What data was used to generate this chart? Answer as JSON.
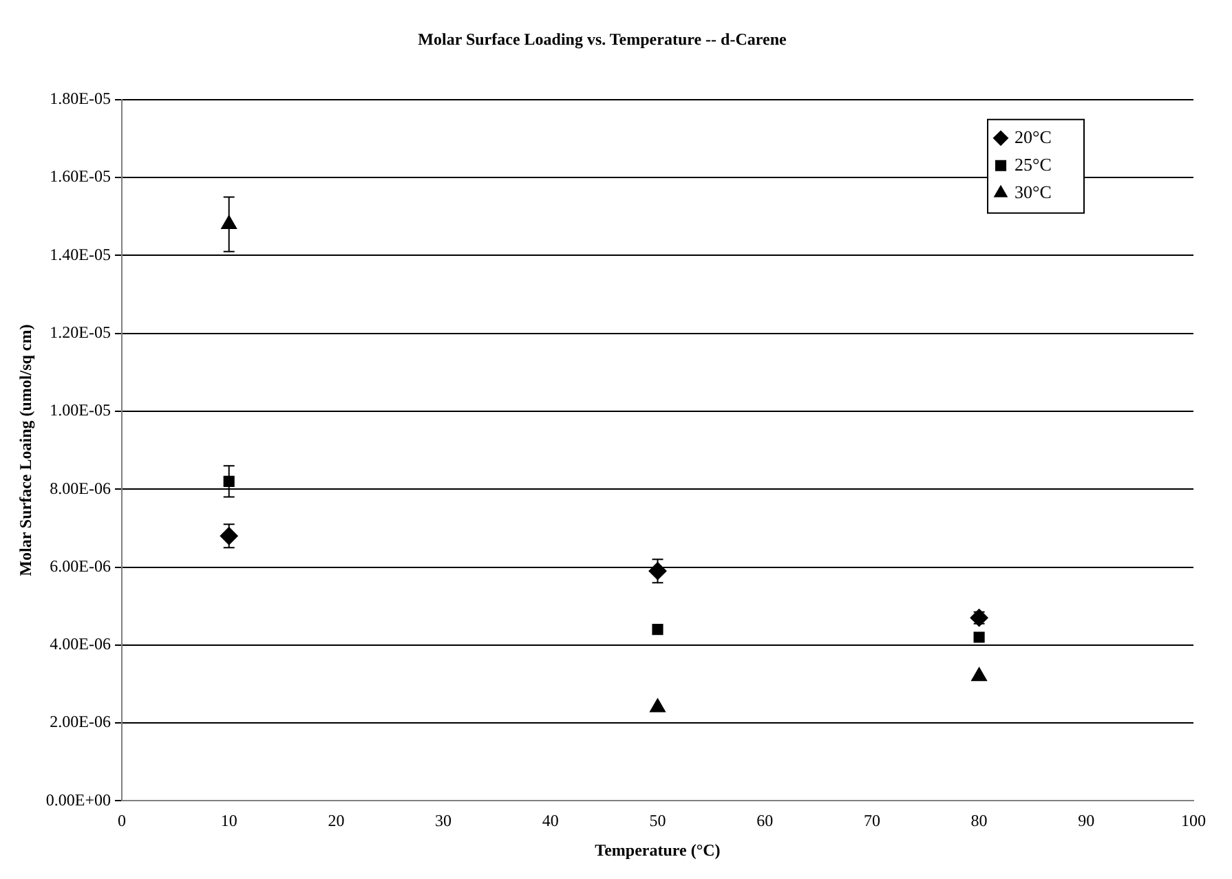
{
  "chart_data": {
    "type": "scatter",
    "title": "Molar Surface Loading vs. Temperature -- d-Carene",
    "xlabel": "Temperature (°C)",
    "ylabel": "Molar Surface Loaing (umol/sq cm)",
    "x": [
      10,
      50,
      80
    ],
    "series": [
      {
        "name": "20°C",
        "color": "#000000",
        "marker": "diamond",
        "values": [
          6.8e-06,
          5.9e-06,
          4.7e-06
        ],
        "errors": [
          3e-07,
          3e-07,
          1.5e-07
        ]
      },
      {
        "name": "25°C",
        "color": "#000000",
        "marker": "square",
        "values": [
          8.2e-06,
          4.4e-06,
          4.2e-06
        ],
        "errors": [
          4e-07,
          null,
          null
        ]
      },
      {
        "name": "30°C",
        "color": "#000000",
        "marker": "triangle",
        "values": [
          1.48e-05,
          2.4e-06,
          3.2e-06
        ],
        "errors": [
          7e-07,
          null,
          null
        ]
      }
    ],
    "xlim": [
      0,
      100
    ],
    "xticks": [
      0,
      10,
      20,
      30,
      40,
      50,
      60,
      70,
      80,
      90,
      100
    ],
    "ylim": [
      0,
      1.8e-05
    ],
    "yticks": [
      {
        "value": 0,
        "label": "0.00E+00"
      },
      {
        "value": 2e-06,
        "label": "2.00E-06"
      },
      {
        "value": 4e-06,
        "label": "4.00E-06"
      },
      {
        "value": 6e-06,
        "label": "6.00E-06"
      },
      {
        "value": 8e-06,
        "label": "8.00E-06"
      },
      {
        "value": 1e-05,
        "label": "1.00E-05"
      },
      {
        "value": 1.2e-05,
        "label": "1.20E-05"
      },
      {
        "value": 1.4e-05,
        "label": "1.40E-05"
      },
      {
        "value": 1.6e-05,
        "label": "1.60E-05"
      },
      {
        "value": 1.8e-05,
        "label": "1.80E-05"
      }
    ],
    "grid": "y",
    "legend": "top right"
  }
}
